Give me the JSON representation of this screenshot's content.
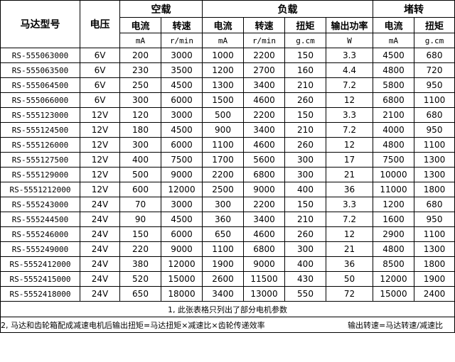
{
  "header": {
    "model": "马达型号",
    "voltage": "电压",
    "noload": "空载",
    "load": "负载",
    "stall": "堵转",
    "cols": [
      "电流",
      "转速",
      "电流",
      "转速",
      "扭矩",
      "输出功率",
      "电流",
      "扭矩"
    ],
    "units": [
      "mA",
      "r/min",
      "mA",
      "r/min",
      "g.cm",
      "W",
      "mA",
      "g.cm"
    ]
  },
  "rows": [
    [
      "RS-555063000",
      "6V",
      "200",
      "3000",
      "1000",
      "2200",
      "150",
      "3.3",
      "4500",
      "680"
    ],
    [
      "RS-555063500",
      "6V",
      "230",
      "3500",
      "1200",
      "2700",
      "160",
      "4.4",
      "4800",
      "720"
    ],
    [
      "RS-555064500",
      "6V",
      "250",
      "4500",
      "1300",
      "3400",
      "210",
      "7.2",
      "5800",
      "950"
    ],
    [
      "RS-555066000",
      "6V",
      "300",
      "6000",
      "1500",
      "4600",
      "260",
      "12",
      "6800",
      "1100"
    ],
    [
      "RS-555123000",
      "12V",
      "120",
      "3000",
      "500",
      "2200",
      "150",
      "3.3",
      "2100",
      "680"
    ],
    [
      "RS-555124500",
      "12V",
      "180",
      "4500",
      "900",
      "3400",
      "210",
      "7.2",
      "4000",
      "950"
    ],
    [
      "RS-555126000",
      "12V",
      "300",
      "6000",
      "1100",
      "4600",
      "260",
      "12",
      "4800",
      "1100"
    ],
    [
      "RS-555127500",
      "12V",
      "400",
      "7500",
      "1700",
      "5600",
      "300",
      "17",
      "7500",
      "1300"
    ],
    [
      "RS-555129000",
      "12V",
      "500",
      "9000",
      "2200",
      "6800",
      "300",
      "21",
      "10000",
      "1300"
    ],
    [
      "RS-5551212000",
      "12V",
      "600",
      "12000",
      "2500",
      "9000",
      "400",
      "36",
      "11000",
      "1800"
    ],
    [
      "RS-555243000",
      "24V",
      "70",
      "3000",
      "300",
      "2200",
      "150",
      "3.3",
      "1200",
      "680"
    ],
    [
      "RS-555244500",
      "24V",
      "90",
      "4500",
      "360",
      "3400",
      "210",
      "7.2",
      "1600",
      "950"
    ],
    [
      "RS-555246000",
      "24V",
      "150",
      "6000",
      "650",
      "4600",
      "260",
      "12",
      "2900",
      "1100"
    ],
    [
      "RS-555249000",
      "24V",
      "220",
      "9000",
      "1100",
      "6800",
      "300",
      "21",
      "4800",
      "1300"
    ],
    [
      "RS-5552412000",
      "24V",
      "380",
      "12000",
      "1900",
      "9000",
      "400",
      "36",
      "8500",
      "1800"
    ],
    [
      "RS-5552415000",
      "24V",
      "520",
      "15000",
      "2600",
      "11500",
      "430",
      "50",
      "12000",
      "1900"
    ],
    [
      "RS-5552418000",
      "24V",
      "650",
      "18000",
      "3400",
      "13000",
      "550",
      "72",
      "15000",
      "2400"
    ]
  ],
  "notes": {
    "note1": "1, 此张表格只列出了部分电机参数",
    "note2a": "2, 马达和齿轮箱配成减速电机后输出扭矩=马达扭矩×减速比×齿轮传递效率",
    "note2b": "输出转速=马达转速/减速比"
  }
}
